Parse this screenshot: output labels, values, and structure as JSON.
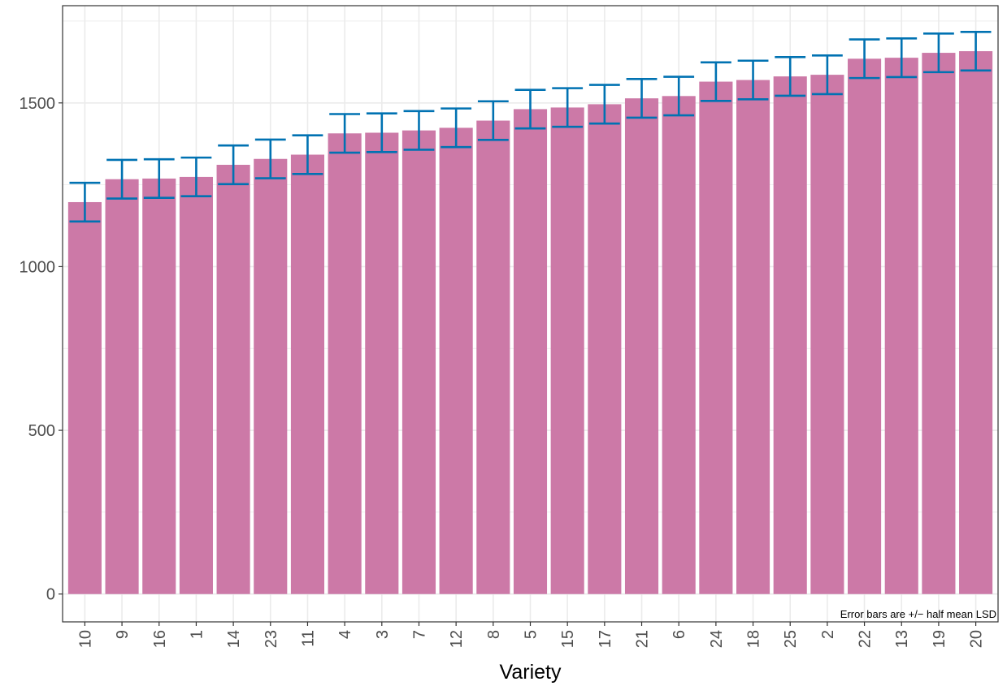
{
  "chart_data": {
    "type": "bar",
    "title": "",
    "xlabel": "Variety",
    "ylabel": "",
    "categories": [
      "10",
      "9",
      "16",
      "1",
      "14",
      "23",
      "11",
      "4",
      "3",
      "7",
      "12",
      "8",
      "5",
      "15",
      "17",
      "21",
      "6",
      "24",
      "18",
      "25",
      "2",
      "22",
      "13",
      "19",
      "20"
    ],
    "values": [
      1197,
      1267,
      1269,
      1274,
      1311,
      1329,
      1342,
      1407,
      1409,
      1416,
      1424,
      1446,
      1481,
      1486,
      1496,
      1514,
      1521,
      1565,
      1570,
      1581,
      1586,
      1635,
      1638,
      1653,
      1658
    ],
    "error_half_width": 59,
    "ylim": [
      -85,
      1797
    ],
    "yticks": [
      0,
      500,
      1000,
      1500
    ],
    "ytick_labels": [
      "0",
      "500",
      "1000",
      "1500"
    ],
    "grid": true,
    "colors": {
      "bar": "#CC79A7",
      "error_bar": "#0072B2",
      "grid": "#ebebeb",
      "panel_border": "#333333"
    },
    "annotation": "Error bars are +/− half mean LSD"
  }
}
